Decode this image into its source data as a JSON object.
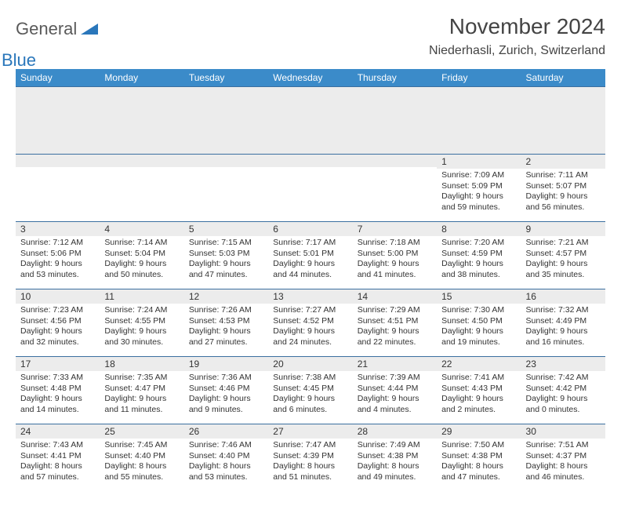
{
  "brand": {
    "part1": "General",
    "part2": "Blue"
  },
  "title": "November 2024",
  "location": "Niederhasli, Zurich, Switzerland",
  "colors": {
    "header_bg": "#3b8bc9",
    "header_text": "#ffffff",
    "daynum_bg": "#ececec",
    "cell_border": "#3b6fa0",
    "text": "#333333",
    "brand_gray": "#5a5a5a",
    "brand_blue": "#2a77bb"
  },
  "weekdays": [
    "Sunday",
    "Monday",
    "Tuesday",
    "Wednesday",
    "Thursday",
    "Friday",
    "Saturday"
  ],
  "weeks": [
    [
      {
        "n": "",
        "sr": "",
        "ss": "",
        "dl": ""
      },
      {
        "n": "",
        "sr": "",
        "ss": "",
        "dl": ""
      },
      {
        "n": "",
        "sr": "",
        "ss": "",
        "dl": ""
      },
      {
        "n": "",
        "sr": "",
        "ss": "",
        "dl": ""
      },
      {
        "n": "",
        "sr": "",
        "ss": "",
        "dl": ""
      },
      {
        "n": "1",
        "sr": "Sunrise: 7:09 AM",
        "ss": "Sunset: 5:09 PM",
        "dl": "Daylight: 9 hours and 59 minutes."
      },
      {
        "n": "2",
        "sr": "Sunrise: 7:11 AM",
        "ss": "Sunset: 5:07 PM",
        "dl": "Daylight: 9 hours and 56 minutes."
      }
    ],
    [
      {
        "n": "3",
        "sr": "Sunrise: 7:12 AM",
        "ss": "Sunset: 5:06 PM",
        "dl": "Daylight: 9 hours and 53 minutes."
      },
      {
        "n": "4",
        "sr": "Sunrise: 7:14 AM",
        "ss": "Sunset: 5:04 PM",
        "dl": "Daylight: 9 hours and 50 minutes."
      },
      {
        "n": "5",
        "sr": "Sunrise: 7:15 AM",
        "ss": "Sunset: 5:03 PM",
        "dl": "Daylight: 9 hours and 47 minutes."
      },
      {
        "n": "6",
        "sr": "Sunrise: 7:17 AM",
        "ss": "Sunset: 5:01 PM",
        "dl": "Daylight: 9 hours and 44 minutes."
      },
      {
        "n": "7",
        "sr": "Sunrise: 7:18 AM",
        "ss": "Sunset: 5:00 PM",
        "dl": "Daylight: 9 hours and 41 minutes."
      },
      {
        "n": "8",
        "sr": "Sunrise: 7:20 AM",
        "ss": "Sunset: 4:59 PM",
        "dl": "Daylight: 9 hours and 38 minutes."
      },
      {
        "n": "9",
        "sr": "Sunrise: 7:21 AM",
        "ss": "Sunset: 4:57 PM",
        "dl": "Daylight: 9 hours and 35 minutes."
      }
    ],
    [
      {
        "n": "10",
        "sr": "Sunrise: 7:23 AM",
        "ss": "Sunset: 4:56 PM",
        "dl": "Daylight: 9 hours and 32 minutes."
      },
      {
        "n": "11",
        "sr": "Sunrise: 7:24 AM",
        "ss": "Sunset: 4:55 PM",
        "dl": "Daylight: 9 hours and 30 minutes."
      },
      {
        "n": "12",
        "sr": "Sunrise: 7:26 AM",
        "ss": "Sunset: 4:53 PM",
        "dl": "Daylight: 9 hours and 27 minutes."
      },
      {
        "n": "13",
        "sr": "Sunrise: 7:27 AM",
        "ss": "Sunset: 4:52 PM",
        "dl": "Daylight: 9 hours and 24 minutes."
      },
      {
        "n": "14",
        "sr": "Sunrise: 7:29 AM",
        "ss": "Sunset: 4:51 PM",
        "dl": "Daylight: 9 hours and 22 minutes."
      },
      {
        "n": "15",
        "sr": "Sunrise: 7:30 AM",
        "ss": "Sunset: 4:50 PM",
        "dl": "Daylight: 9 hours and 19 minutes."
      },
      {
        "n": "16",
        "sr": "Sunrise: 7:32 AM",
        "ss": "Sunset: 4:49 PM",
        "dl": "Daylight: 9 hours and 16 minutes."
      }
    ],
    [
      {
        "n": "17",
        "sr": "Sunrise: 7:33 AM",
        "ss": "Sunset: 4:48 PM",
        "dl": "Daylight: 9 hours and 14 minutes."
      },
      {
        "n": "18",
        "sr": "Sunrise: 7:35 AM",
        "ss": "Sunset: 4:47 PM",
        "dl": "Daylight: 9 hours and 11 minutes."
      },
      {
        "n": "19",
        "sr": "Sunrise: 7:36 AM",
        "ss": "Sunset: 4:46 PM",
        "dl": "Daylight: 9 hours and 9 minutes."
      },
      {
        "n": "20",
        "sr": "Sunrise: 7:38 AM",
        "ss": "Sunset: 4:45 PM",
        "dl": "Daylight: 9 hours and 6 minutes."
      },
      {
        "n": "21",
        "sr": "Sunrise: 7:39 AM",
        "ss": "Sunset: 4:44 PM",
        "dl": "Daylight: 9 hours and 4 minutes."
      },
      {
        "n": "22",
        "sr": "Sunrise: 7:41 AM",
        "ss": "Sunset: 4:43 PM",
        "dl": "Daylight: 9 hours and 2 minutes."
      },
      {
        "n": "23",
        "sr": "Sunrise: 7:42 AM",
        "ss": "Sunset: 4:42 PM",
        "dl": "Daylight: 9 hours and 0 minutes."
      }
    ],
    [
      {
        "n": "24",
        "sr": "Sunrise: 7:43 AM",
        "ss": "Sunset: 4:41 PM",
        "dl": "Daylight: 8 hours and 57 minutes."
      },
      {
        "n": "25",
        "sr": "Sunrise: 7:45 AM",
        "ss": "Sunset: 4:40 PM",
        "dl": "Daylight: 8 hours and 55 minutes."
      },
      {
        "n": "26",
        "sr": "Sunrise: 7:46 AM",
        "ss": "Sunset: 4:40 PM",
        "dl": "Daylight: 8 hours and 53 minutes."
      },
      {
        "n": "27",
        "sr": "Sunrise: 7:47 AM",
        "ss": "Sunset: 4:39 PM",
        "dl": "Daylight: 8 hours and 51 minutes."
      },
      {
        "n": "28",
        "sr": "Sunrise: 7:49 AM",
        "ss": "Sunset: 4:38 PM",
        "dl": "Daylight: 8 hours and 49 minutes."
      },
      {
        "n": "29",
        "sr": "Sunrise: 7:50 AM",
        "ss": "Sunset: 4:38 PM",
        "dl": "Daylight: 8 hours and 47 minutes."
      },
      {
        "n": "30",
        "sr": "Sunrise: 7:51 AM",
        "ss": "Sunset: 4:37 PM",
        "dl": "Daylight: 8 hours and 46 minutes."
      }
    ]
  ]
}
